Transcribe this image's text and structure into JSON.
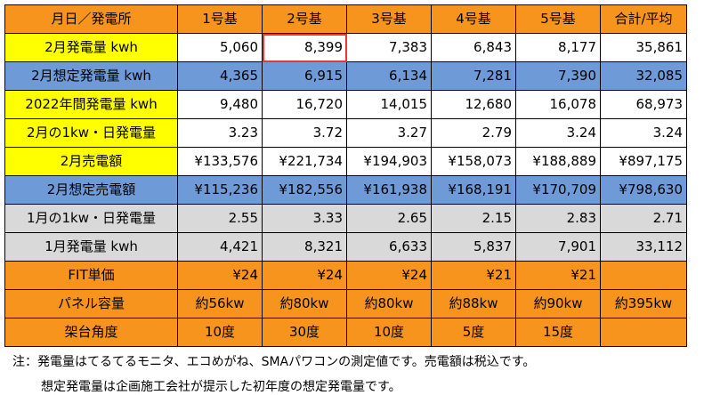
{
  "header": [
    "月日／発電所",
    "1号基",
    "2号基",
    "3号基",
    "4号基",
    "5号基",
    "合計/平均"
  ],
  "rows": [
    {
      "label": "2月発電量 kwh",
      "values": [
        "5,060",
        "8,399",
        "7,383",
        "6,843",
        "8,177",
        "35,861"
      ],
      "highlight_index": 1
    },
    {
      "label": "2月想定発電量 kwh",
      "values": [
        "4,365",
        "6,915",
        "6,134",
        "7,281",
        "7,390",
        "32,085"
      ]
    },
    {
      "label": "2022年間発電量 kwh",
      "values": [
        "9,480",
        "16,720",
        "14,015",
        "12,680",
        "16,078",
        "68,973"
      ]
    },
    {
      "label": "2月の1kw・日発電量",
      "values": [
        "3.23",
        "3.72",
        "3.27",
        "2.79",
        "3.24",
        "3.24"
      ]
    },
    {
      "label": "2月売電額",
      "values": [
        "¥133,576",
        "¥221,734",
        "¥194,903",
        "¥158,073",
        "¥188,889",
        "¥897,175"
      ]
    },
    {
      "label": "2月想定売電額",
      "values": [
        "¥115,236",
        "¥182,556",
        "¥161,938",
        "¥168,191",
        "¥170,709",
        "¥798,630"
      ]
    },
    {
      "label": "1月の1kw・日発電量",
      "values": [
        "2.55",
        "3.33",
        "2.65",
        "2.15",
        "2.83",
        "2.71"
      ]
    },
    {
      "label": "1月発電量 kwh",
      "values": [
        "4,421",
        "8,321",
        "6,633",
        "5,837",
        "7,901",
        "33,112"
      ]
    },
    {
      "label": "FIT単価",
      "values": [
        "¥24",
        "¥24",
        "¥24",
        "¥21",
        "¥21",
        ""
      ]
    },
    {
      "label": "パネル容量",
      "values": [
        "約56kw",
        "約80kw",
        "約80kw",
        "約88kw",
        "約90kw",
        "約395kw"
      ]
    },
    {
      "label": "架台角度",
      "values": [
        "10度",
        "30度",
        "10度",
        "5度",
        "15度",
        ""
      ]
    }
  ],
  "notes": [
    "注：発電量はてるてるモニタ、エコめがね、SMAパワコンの測定値です。売電額は税込です。",
    "想定発電量は企画施工会社が提示した初年度の想定発電量です。"
  ],
  "colors": {
    "header": "#f7941d",
    "yellow": "#ffff00",
    "blue": "#6f9ad8",
    "gray": "#d9d9d9",
    "orange": "#f7941d",
    "highlight_border": "#e53935"
  }
}
